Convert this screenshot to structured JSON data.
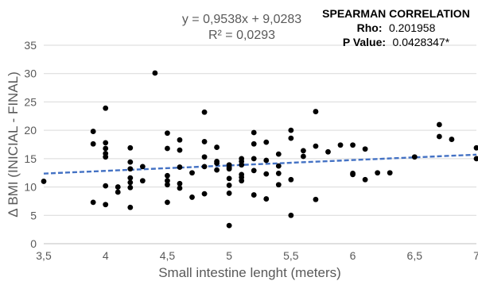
{
  "colors": {
    "points": "#000000",
    "trendline": "#4472c4",
    "grid": "#d9d9d9",
    "text": "#595959"
  },
  "chart_data": {
    "type": "scatter",
    "xlabel": "Small intestine lenght (meters)",
    "ylabel": "Δ BMI (INICIAL - FINAL)",
    "xlim": [
      3.5,
      7
    ],
    "ylim": [
      0,
      35
    ],
    "xticks": [
      3.5,
      4,
      4.5,
      5,
      5.5,
      6,
      6.5,
      7
    ],
    "xtick_labels": [
      "3,5",
      "4",
      "4,5",
      "5",
      "5,5",
      "6",
      "6,5",
      "7"
    ],
    "yticks": [
      0,
      5,
      10,
      15,
      20,
      25,
      30,
      35
    ],
    "ytick_labels": [
      "0",
      "5",
      "10",
      "15",
      "20",
      "25",
      "30",
      "35"
    ],
    "grid": "horizontal",
    "trendline": {
      "style": "dashed",
      "slope": 0.9538,
      "intercept": 9.0283,
      "equation": "y = 0,9538x + 9,0283",
      "r_squared": "R² = 0,0293"
    },
    "annotation": {
      "title": "SPEARMAN CORRELATION",
      "rho_label": "Rho:",
      "rho_value": "0.201958",
      "p_label": "P Value:",
      "p_value": "0.0428347*"
    },
    "points": [
      [
        3.5,
        11.0
      ],
      [
        3.9,
        19.8
      ],
      [
        3.9,
        17.6
      ],
      [
        3.9,
        7.3
      ],
      [
        4.0,
        23.9
      ],
      [
        4.0,
        17.8
      ],
      [
        4.0,
        16.8
      ],
      [
        4.0,
        15.9
      ],
      [
        4.0,
        15.3
      ],
      [
        4.0,
        10.2
      ],
      [
        4.0,
        6.9
      ],
      [
        4.1,
        10.0
      ],
      [
        4.1,
        9.1
      ],
      [
        4.2,
        16.9
      ],
      [
        4.2,
        14.4
      ],
      [
        4.2,
        13.2
      ],
      [
        4.2,
        11.6
      ],
      [
        4.2,
        10.8
      ],
      [
        4.2,
        9.9
      ],
      [
        4.2,
        6.4
      ],
      [
        4.3,
        13.6
      ],
      [
        4.3,
        11.1
      ],
      [
        4.4,
        30.1
      ],
      [
        4.5,
        19.5
      ],
      [
        4.5,
        16.8
      ],
      [
        4.5,
        12.0
      ],
      [
        4.5,
        11.1
      ],
      [
        4.5,
        10.4
      ],
      [
        4.5,
        7.3
      ],
      [
        4.6,
        18.3
      ],
      [
        4.6,
        16.5
      ],
      [
        4.6,
        13.5
      ],
      [
        4.6,
        10.6
      ],
      [
        4.6,
        9.8
      ],
      [
        4.7,
        12.5
      ],
      [
        4.7,
        8.2
      ],
      [
        4.8,
        23.2
      ],
      [
        4.8,
        18.0
      ],
      [
        4.8,
        15.3
      ],
      [
        4.8,
        13.6
      ],
      [
        4.8,
        8.8
      ],
      [
        4.9,
        17.0
      ],
      [
        4.9,
        14.5
      ],
      [
        4.9,
        14.2
      ],
      [
        4.9,
        13.0
      ],
      [
        5.0,
        13.9
      ],
      [
        5.0,
        13.5
      ],
      [
        5.0,
        13.2
      ],
      [
        5.0,
        11.5
      ],
      [
        5.0,
        10.3
      ],
      [
        5.0,
        8.9
      ],
      [
        5.0,
        3.2
      ],
      [
        5.1,
        15.0
      ],
      [
        5.1,
        14.5
      ],
      [
        5.1,
        13.9
      ],
      [
        5.1,
        12.2
      ],
      [
        5.1,
        11.7
      ],
      [
        5.1,
        11.1
      ],
      [
        5.2,
        19.6
      ],
      [
        5.2,
        17.6
      ],
      [
        5.2,
        15.0
      ],
      [
        5.2,
        12.9
      ],
      [
        5.2,
        8.6
      ],
      [
        5.3,
        17.9
      ],
      [
        5.3,
        14.7
      ],
      [
        5.3,
        12.3
      ],
      [
        5.3,
        7.9
      ],
      [
        5.4,
        15.8
      ],
      [
        5.4,
        13.7
      ],
      [
        5.4,
        12.4
      ],
      [
        5.4,
        10.4
      ],
      [
        5.5,
        20.0
      ],
      [
        5.5,
        18.6
      ],
      [
        5.5,
        11.3
      ],
      [
        5.5,
        5.0
      ],
      [
        5.6,
        16.4
      ],
      [
        5.6,
        15.4
      ],
      [
        5.7,
        23.3
      ],
      [
        5.7,
        17.2
      ],
      [
        5.7,
        7.8
      ],
      [
        5.8,
        16.2
      ],
      [
        5.9,
        17.4
      ],
      [
        6.0,
        17.4
      ],
      [
        6.0,
        12.4
      ],
      [
        6.0,
        12.2
      ],
      [
        6.1,
        16.7
      ],
      [
        6.1,
        11.3
      ],
      [
        6.2,
        12.5
      ],
      [
        6.3,
        12.5
      ],
      [
        6.5,
        15.3
      ],
      [
        6.7,
        21.0
      ],
      [
        6.7,
        18.9
      ],
      [
        6.8,
        18.4
      ],
      [
        7.0,
        16.9
      ],
      [
        7.0,
        15.0
      ]
    ]
  }
}
